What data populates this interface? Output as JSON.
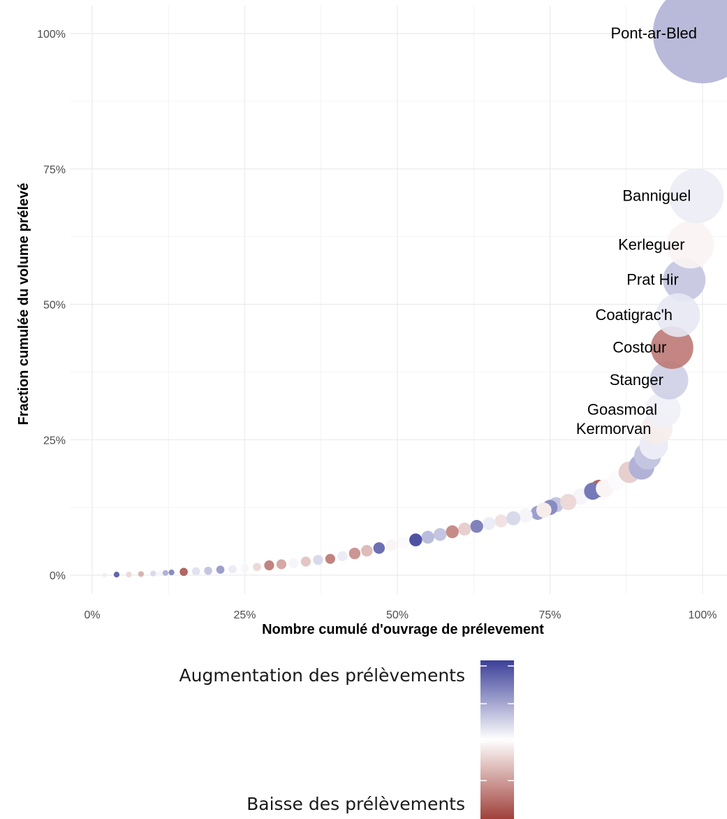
{
  "chart_data": {
    "type": "scatter",
    "xlabel": "Nombre cumulé d'ouvrage de prélevement",
    "ylabel": "Fraction cumulée du volume prélevé",
    "xlim": [
      0,
      1
    ],
    "ylim": [
      0,
      1
    ],
    "x_ticks": [
      "0%",
      "25%",
      "50%",
      "75%",
      "100%"
    ],
    "y_ticks": [
      "0%",
      "25%",
      "50%",
      "75%",
      "100%"
    ],
    "grid": true,
    "colors": {
      "increase": "#3b3f98",
      "neutral": "#ffffff",
      "decrease": "#a0403a",
      "axis_text": "#4d4d4d",
      "grid": "#ebebeb"
    },
    "labeled_points": [
      {
        "name": "Pont-ar-Bled",
        "x": 1.0,
        "y": 1.0,
        "share": 0.3,
        "trend": 0.4
      },
      {
        "name": "Banniguel",
        "x": 0.99,
        "y": 0.7,
        "share": 0.09,
        "trend": 0.1
      },
      {
        "name": "Kerleguer",
        "x": 0.98,
        "y": 0.61,
        "share": 0.068,
        "trend": -0.06
      },
      {
        "name": "Prat Hir",
        "x": 0.97,
        "y": 0.545,
        "share": 0.055,
        "trend": 0.3
      },
      {
        "name": "Coatigrac'h",
        "x": 0.96,
        "y": 0.48,
        "share": 0.058,
        "trend": 0.12
      },
      {
        "name": "Costour",
        "x": 0.95,
        "y": 0.42,
        "share": 0.055,
        "trend": -0.7
      },
      {
        "name": "Stanger",
        "x": 0.945,
        "y": 0.36,
        "share": 0.045,
        "trend": 0.25
      },
      {
        "name": "Goasmoal",
        "x": 0.935,
        "y": 0.305,
        "share": 0.038,
        "trend": 0.08
      },
      {
        "name": "Kermorvan",
        "x": 0.925,
        "y": 0.27,
        "share": 0.03,
        "trend": -0.1
      }
    ],
    "points": [
      {
        "x": 0.92,
        "y": 0.24,
        "share": 0.025,
        "trend": 0.1
      },
      {
        "x": 0.91,
        "y": 0.22,
        "share": 0.022,
        "trend": 0.3
      },
      {
        "x": 0.9,
        "y": 0.2,
        "share": 0.02,
        "trend": 0.4
      },
      {
        "x": 0.88,
        "y": 0.19,
        "share": 0.014,
        "trend": -0.25
      },
      {
        "x": 0.86,
        "y": 0.175,
        "share": 0.011,
        "trend": 0.02
      },
      {
        "x": 0.84,
        "y": 0.16,
        "share": 0.01,
        "trend": -0.05
      },
      {
        "x": 0.83,
        "y": 0.16,
        "share": 0.009,
        "trend": -0.8
      },
      {
        "x": 0.82,
        "y": 0.155,
        "share": 0.009,
        "trend": 0.7
      },
      {
        "x": 0.8,
        "y": 0.145,
        "share": 0.008,
        "trend": 0.05
      },
      {
        "x": 0.78,
        "y": 0.135,
        "share": 0.008,
        "trend": -0.2
      },
      {
        "x": 0.76,
        "y": 0.13,
        "share": 0.007,
        "trend": 0.3
      },
      {
        "x": 0.75,
        "y": 0.125,
        "share": 0.007,
        "trend": 0.6
      },
      {
        "x": 0.74,
        "y": 0.12,
        "share": 0.007,
        "trend": -0.1
      },
      {
        "x": 0.73,
        "y": 0.115,
        "share": 0.006,
        "trend": 0.5
      },
      {
        "x": 0.71,
        "y": 0.11,
        "share": 0.006,
        "trend": 0.05
      },
      {
        "x": 0.69,
        "y": 0.105,
        "share": 0.006,
        "trend": 0.2
      },
      {
        "x": 0.67,
        "y": 0.1,
        "share": 0.005,
        "trend": -0.15
      },
      {
        "x": 0.65,
        "y": 0.095,
        "share": 0.005,
        "trend": 0.1
      },
      {
        "x": 0.63,
        "y": 0.09,
        "share": 0.005,
        "trend": 0.65
      },
      {
        "x": 0.61,
        "y": 0.085,
        "share": 0.005,
        "trend": -0.25
      },
      {
        "x": 0.59,
        "y": 0.08,
        "share": 0.005,
        "trend": -0.6
      },
      {
        "x": 0.57,
        "y": 0.075,
        "share": 0.005,
        "trend": 0.3
      },
      {
        "x": 0.55,
        "y": 0.07,
        "share": 0.005,
        "trend": 0.35
      },
      {
        "x": 0.53,
        "y": 0.065,
        "share": 0.005,
        "trend": 0.9
      },
      {
        "x": 0.51,
        "y": 0.06,
        "share": 0.004,
        "trend": 0.02
      },
      {
        "x": 0.49,
        "y": 0.055,
        "share": 0.004,
        "trend": -0.05
      },
      {
        "x": 0.47,
        "y": 0.05,
        "share": 0.004,
        "trend": 0.75
      },
      {
        "x": 0.45,
        "y": 0.045,
        "share": 0.004,
        "trend": -0.35
      },
      {
        "x": 0.43,
        "y": 0.04,
        "share": 0.004,
        "trend": -0.55
      },
      {
        "x": 0.41,
        "y": 0.035,
        "share": 0.003,
        "trend": 0.1
      },
      {
        "x": 0.39,
        "y": 0.03,
        "share": 0.003,
        "trend": -0.65
      },
      {
        "x": 0.37,
        "y": 0.028,
        "share": 0.003,
        "trend": 0.2
      },
      {
        "x": 0.35,
        "y": 0.025,
        "share": 0.003,
        "trend": -0.3
      },
      {
        "x": 0.33,
        "y": 0.022,
        "share": 0.003,
        "trend": 0.05
      },
      {
        "x": 0.31,
        "y": 0.02,
        "share": 0.003,
        "trend": -0.45
      },
      {
        "x": 0.29,
        "y": 0.018,
        "share": 0.003,
        "trend": -0.65
      },
      {
        "x": 0.27,
        "y": 0.015,
        "share": 0.002,
        "trend": -0.2
      },
      {
        "x": 0.25,
        "y": 0.013,
        "share": 0.002,
        "trend": 0.05
      },
      {
        "x": 0.23,
        "y": 0.011,
        "share": 0.002,
        "trend": 0.1
      },
      {
        "x": 0.21,
        "y": 0.01,
        "share": 0.002,
        "trend": 0.5
      },
      {
        "x": 0.19,
        "y": 0.008,
        "share": 0.002,
        "trend": 0.3
      },
      {
        "x": 0.17,
        "y": 0.007,
        "share": 0.002,
        "trend": 0.15
      },
      {
        "x": 0.15,
        "y": 0.006,
        "share": 0.002,
        "trend": -0.8
      },
      {
        "x": 0.13,
        "y": 0.005,
        "share": 0.001,
        "trend": 0.6
      },
      {
        "x": 0.12,
        "y": 0.004,
        "share": 0.001,
        "trend": 0.4
      },
      {
        "x": 0.11,
        "y": 0.003,
        "share": 0.001,
        "trend": 0.05
      },
      {
        "x": 0.1,
        "y": 0.003,
        "share": 0.001,
        "trend": 0.2
      },
      {
        "x": 0.08,
        "y": 0.002,
        "share": 0.001,
        "trend": -0.4
      },
      {
        "x": 0.06,
        "y": 0.001,
        "share": 0.001,
        "trend": -0.2
      },
      {
        "x": 0.04,
        "y": 0.001,
        "share": 0.001,
        "trend": 0.8
      },
      {
        "x": 0.02,
        "y": 0.0,
        "share": 0.0005,
        "trend": 0.1
      }
    ]
  },
  "legend": {
    "high_label": "Augmentation des prélèvements",
    "low_label": "Baisse des prélèvements",
    "high_color": "#3b3f98",
    "mid_color": "#ffffff",
    "low_color": "#a0403a"
  }
}
